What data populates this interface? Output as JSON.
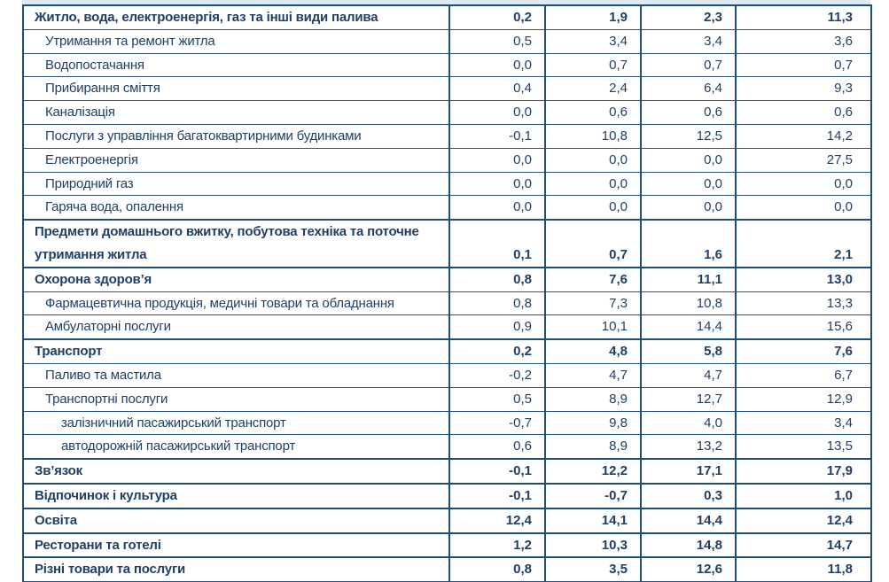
{
  "table": {
    "rows": [
      {
        "label": "Житло, вода, електроенергія, газ та інші види палива",
        "level": 0,
        "values": [
          "0,2",
          "1,9",
          "2,3",
          "11,3"
        ]
      },
      {
        "label": "Утримання та ремонт житла",
        "level": 1,
        "values": [
          "0,5",
          "3,4",
          "3,4",
          "3,6"
        ]
      },
      {
        "label": "Водопостачання",
        "level": 1,
        "values": [
          "0,0",
          "0,7",
          "0,7",
          "0,7"
        ]
      },
      {
        "label": "Прибирання сміття",
        "level": 1,
        "values": [
          "0,4",
          "2,4",
          "6,4",
          "9,3"
        ]
      },
      {
        "label": "Каналізація",
        "level": 1,
        "values": [
          "0,0",
          "0,6",
          "0,6",
          "0,6"
        ]
      },
      {
        "label": "Послуги з управління багатоквартирними будинками",
        "level": 1,
        "values": [
          "-0,1",
          "10,8",
          "12,5",
          "14,2"
        ]
      },
      {
        "label": "Електроенергія",
        "level": 1,
        "values": [
          "0,0",
          "0,0",
          "0,0",
          "27,5"
        ]
      },
      {
        "label": "Природний газ",
        "level": 1,
        "values": [
          "0,0",
          "0,0",
          "0,0",
          "0,0"
        ]
      },
      {
        "label": "Гаряча вода, опалення",
        "level": 1,
        "values": [
          "0,0",
          "0,0",
          "0,0",
          "0,0"
        ]
      },
      {
        "label": "Предмети домашнього вжитку, побутова техніка та поточне утримання житла",
        "level": 0,
        "values": [
          "0,1",
          "0,7",
          "1,6",
          "2,1"
        ]
      },
      {
        "label": "Охорона здоров’я",
        "level": 0,
        "values": [
          "0,8",
          "7,6",
          "11,1",
          "13,0"
        ]
      },
      {
        "label": "Фармацевтична продукція, медичні товари та обладнання",
        "level": 1,
        "values": [
          "0,8",
          "7,3",
          "10,8",
          "13,3"
        ]
      },
      {
        "label": "Амбулаторні послуги",
        "level": 1,
        "values": [
          "0,9",
          "10,1",
          "14,4",
          "15,6"
        ]
      },
      {
        "label": "Транспорт",
        "level": 0,
        "values": [
          "0,2",
          "4,8",
          "5,8",
          "7,6"
        ]
      },
      {
        "label": "Паливо та мастила",
        "level": 1,
        "values": [
          "-0,2",
          "4,7",
          "4,7",
          "6,7"
        ]
      },
      {
        "label": "Транспортні послуги",
        "level": 1,
        "values": [
          "0,5",
          "8,9",
          "12,7",
          "12,9"
        ]
      },
      {
        "label": "залізничний пасажирський транспорт",
        "level": 2,
        "values": [
          "-0,7",
          "9,8",
          "4,0",
          "3,4"
        ]
      },
      {
        "label": "автодорожній пасажирський транспорт",
        "level": 2,
        "values": [
          "0,6",
          "8,9",
          "13,2",
          "13,5"
        ]
      },
      {
        "label": "Зв’язок",
        "level": 0,
        "values": [
          "-0,1",
          "12,2",
          "17,1",
          "17,9"
        ]
      },
      {
        "label": "Відпочинок і культура",
        "level": 0,
        "values": [
          "-0,1",
          "-0,7",
          "0,3",
          "1,0"
        ]
      },
      {
        "label": "Освіта",
        "level": 0,
        "values": [
          "12,4",
          "14,1",
          "14,4",
          "12,4"
        ]
      },
      {
        "label": "Ресторани та готелі",
        "level": 0,
        "values": [
          "1,2",
          "10,3",
          "14,8",
          "14,7"
        ]
      },
      {
        "label": "Різні товари та послуги",
        "level": 0,
        "values": [
          "0,8",
          "3,5",
          "12,6",
          "11,8"
        ]
      }
    ]
  }
}
